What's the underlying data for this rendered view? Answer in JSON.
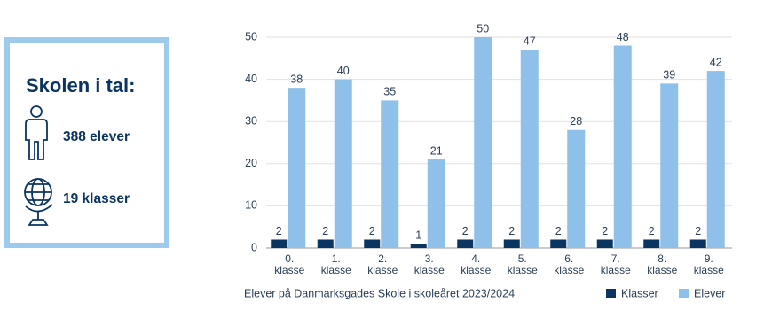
{
  "info_box": {
    "title": "Skolen i tal:",
    "items": [
      "388 elever",
      "19 klasser"
    ]
  },
  "chart_data": {
    "type": "bar",
    "caption": "Elever på Danmarksgades Skole i skoleåret 2023/2024",
    "categories": [
      "0. klasse",
      "1. klasse",
      "2. klasse",
      "3. klasse",
      "4. klasse",
      "5. klasse",
      "6. klasse",
      "7. klasse",
      "8. klasse",
      "9. klasse"
    ],
    "series": [
      {
        "name": "Klasser",
        "color": "#0a3560",
        "values": [
          2,
          2,
          2,
          1,
          2,
          2,
          2,
          2,
          2,
          2
        ]
      },
      {
        "name": "Elever",
        "color": "#8fc0e9",
        "values": [
          38,
          40,
          35,
          21,
          50,
          47,
          28,
          48,
          39,
          42
        ]
      }
    ],
    "ylim": [
      0,
      50
    ],
    "yticks": [
      0,
      10,
      20,
      30,
      40,
      50
    ],
    "grid": true,
    "legend": "bottom-right"
  }
}
